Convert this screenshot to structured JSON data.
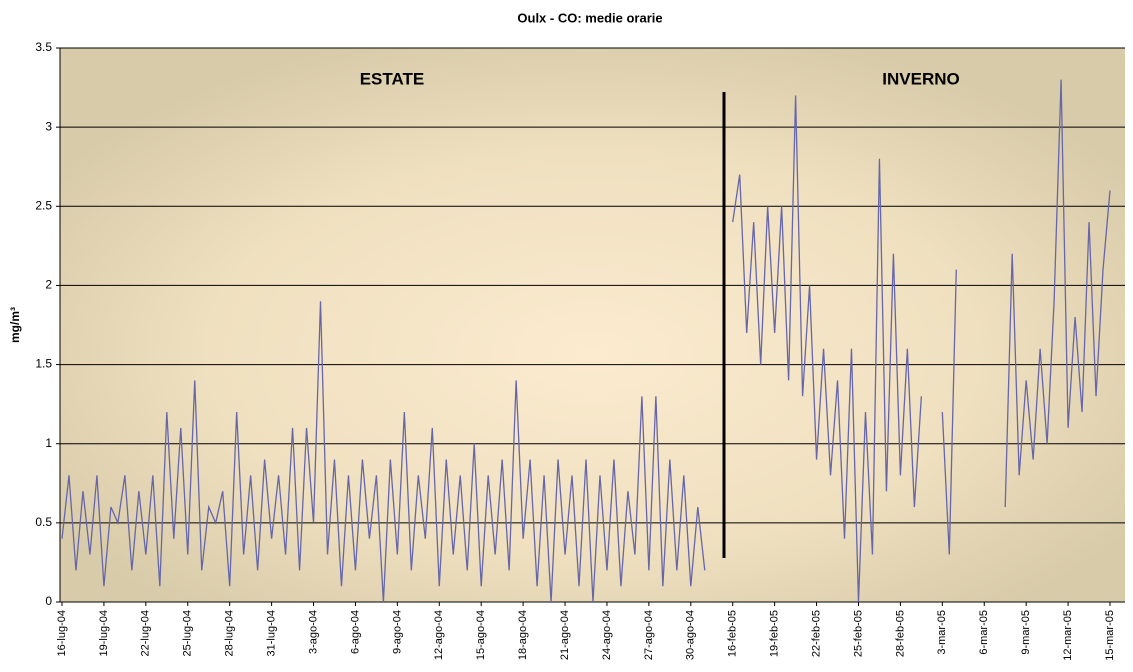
{
  "chart_data": {
    "type": "line",
    "title": "Oulx - CO: medie orarie",
    "y_label": "mg/m³",
    "annotations": [
      {
        "text": "ESTATE",
        "color": "#ff0000"
      },
      {
        "text": "INVERNO",
        "color": "#1f5fbf"
      }
    ],
    "color": "#6666a8",
    "ylim": [
      0,
      3.5
    ],
    "yticks": [
      0,
      0.5,
      1,
      1.5,
      2,
      2.5,
      3,
      3.5
    ],
    "grid": true,
    "categories": [
      "16-lug-04",
      null,
      null,
      null,
      null,
      null,
      "19-lug-04",
      null,
      null,
      null,
      null,
      null,
      "22-lug-04",
      null,
      null,
      null,
      null,
      null,
      "25-lug-04",
      null,
      null,
      null,
      null,
      null,
      "28-lug-04",
      null,
      null,
      null,
      null,
      null,
      "31-lug-04",
      null,
      null,
      null,
      null,
      null,
      "3-ago-04",
      null,
      null,
      null,
      null,
      null,
      "6-ago-04",
      null,
      null,
      null,
      null,
      null,
      "9-ago-04",
      null,
      null,
      null,
      null,
      null,
      "12-ago-04",
      null,
      null,
      null,
      null,
      null,
      "15-ago-04",
      null,
      null,
      null,
      null,
      null,
      "18-ago-04",
      null,
      null,
      null,
      null,
      null,
      "21-ago-04",
      null,
      null,
      null,
      null,
      null,
      "24-ago-04",
      null,
      null,
      null,
      null,
      null,
      "27-ago-04",
      null,
      null,
      null,
      null,
      null,
      "30-ago-04",
      null,
      null,
      null,
      null,
      null,
      "16-feb-05",
      null,
      null,
      null,
      null,
      null,
      "19-feb-05",
      null,
      null,
      null,
      null,
      null,
      "22-feb-05",
      null,
      null,
      null,
      null,
      null,
      "25-feb-05",
      null,
      null,
      null,
      null,
      null,
      "28-feb-05",
      null,
      null,
      null,
      null,
      null,
      "3-mar-05",
      null,
      null,
      null,
      null,
      null,
      "6-mar-05",
      null,
      null,
      null,
      null,
      null,
      "9-mar-05",
      null,
      null,
      null,
      null,
      null,
      "12-mar-05",
      null,
      null,
      null,
      null,
      null,
      "15-mar-05"
    ],
    "values": [
      0.4,
      0.8,
      0.2,
      0.7,
      0.3,
      0.8,
      0.1,
      0.6,
      0.5,
      0.8,
      0.2,
      0.7,
      0.3,
      0.8,
      0.1,
      1.2,
      0.4,
      1.1,
      0.3,
      1.4,
      0.2,
      0.6,
      0.5,
      0.7,
      0.1,
      1.2,
      0.3,
      0.8,
      0.2,
      0.9,
      0.4,
      0.8,
      0.3,
      1.1,
      0.2,
      1.1,
      0.5,
      1.9,
      0.3,
      0.9,
      0.1,
      0.8,
      0.2,
      0.9,
      0.4,
      0.8,
      0,
      0.9,
      0.3,
      1.2,
      0.2,
      0.8,
      0.4,
      1.1,
      0.1,
      0.9,
      0.3,
      0.8,
      0.2,
      1.0,
      0.1,
      0.8,
      0.3,
      0.9,
      0.2,
      1.4,
      0.4,
      0.9,
      0.1,
      0.8,
      0,
      0.9,
      0.3,
      0.8,
      0.1,
      0.9,
      0,
      0.8,
      0.2,
      0.9,
      0.1,
      0.7,
      0.3,
      1.3,
      0.2,
      1.3,
      0.1,
      0.9,
      0.2,
      0.8,
      0.1,
      0.6,
      0.2,
      null,
      null,
      null,
      2.4,
      2.7,
      1.7,
      2.4,
      1.5,
      2.5,
      1.7,
      2.5,
      1.4,
      3.2,
      1.3,
      2.0,
      0.9,
      1.6,
      0.8,
      1.4,
      0.4,
      1.6,
      0,
      1.2,
      0.3,
      2.8,
      0.7,
      2.2,
      0.8,
      1.6,
      0.6,
      1.3,
      null,
      null,
      1.2,
      0.3,
      2.1,
      null,
      null,
      null,
      null,
      null,
      null,
      0.6,
      2.2,
      0.8,
      1.4,
      0.9,
      1.6,
      1.0,
      1.9,
      3.3,
      1.1,
      1.8,
      1.2,
      2.4,
      1.3,
      2.1,
      2.6
    ]
  }
}
